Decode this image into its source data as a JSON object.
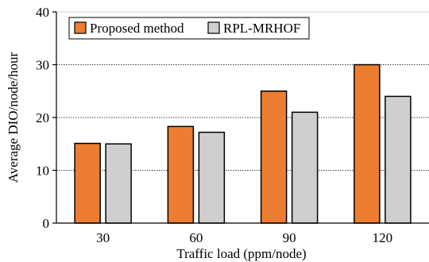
{
  "chart_data": {
    "type": "bar",
    "xlabel": "Traffic load (ppm/node)",
    "ylabel": "Average DIO/node/hour",
    "categories": [
      "30",
      "60",
      "90",
      "120"
    ],
    "series": [
      {
        "name": "Proposed method",
        "color": "#ED7D31",
        "values": [
          15.1,
          18.3,
          25.0,
          30.0
        ]
      },
      {
        "name": "RPL-MRHOF",
        "color": "#D0CECE",
        "values": [
          15.0,
          17.2,
          21.0,
          24.0
        ]
      }
    ],
    "ylim": [
      0,
      40
    ],
    "yticks": [
      "0",
      "10",
      "20",
      "30",
      "40"
    ],
    "grid": true,
    "legend_position": "top-left"
  }
}
